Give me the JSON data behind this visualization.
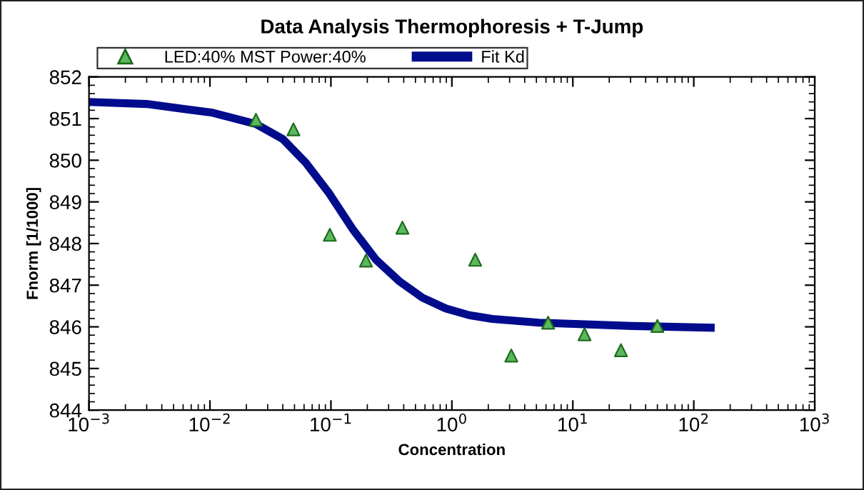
{
  "chart_data": {
    "type": "scatter",
    "title": "Data Analysis Thermophoresis + T-Jump",
    "xlabel": "Concentration",
    "ylabel": "Fnorm [1/1000]",
    "log": "x",
    "legend": "top",
    "grid": false,
    "series": [
      {
        "name": "LED:40% MST Power:40%",
        "marker": "triangle",
        "color": "#5cb85c",
        "x": [
          0.024,
          0.049,
          0.098,
          0.195,
          0.39,
          1.56,
          3.1,
          6.25,
          12.5,
          25,
          50
        ],
        "values": [
          850.97,
          850.74,
          848.21,
          847.59,
          848.38,
          847.61,
          845.31,
          846.1,
          845.82,
          845.44,
          846.02
        ]
      },
      {
        "name": "Fit Kd",
        "type": "line",
        "marker": "none",
        "color": "#000c8c",
        "x": [
          0.001,
          0.003,
          0.0105,
          0.024,
          0.04,
          0.062,
          0.097,
          0.151,
          0.236,
          0.366,
          0.571,
          0.891,
          1.39,
          2.16,
          5.25,
          31,
          138
        ],
        "values": [
          851.4,
          851.35,
          851.14,
          850.87,
          850.51,
          849.94,
          849.2,
          848.35,
          847.61,
          847.1,
          846.7,
          846.44,
          846.28,
          846.19,
          846.1,
          846.02,
          845.98
        ]
      }
    ],
    "xlim": [
      0.001,
      1000
    ],
    "xticks": [
      {
        "value": 0.001,
        "label": "10$^{−3}$"
      },
      {
        "value": 0.01,
        "label": "10$^{−2}$"
      },
      {
        "value": 0.1,
        "label": "10$^{−1}$"
      },
      {
        "value": 1,
        "label": "10$^{0}$"
      },
      {
        "value": 10,
        "label": "10$^{1}$"
      },
      {
        "value": 100,
        "label": "10$^{2}$"
      },
      {
        "value": 1000,
        "label": "10$^{3}$"
      }
    ],
    "ylim": [
      844,
      852
    ],
    "yticks": [
      844,
      845,
      846,
      847,
      848,
      849,
      850,
      851,
      852
    ]
  }
}
